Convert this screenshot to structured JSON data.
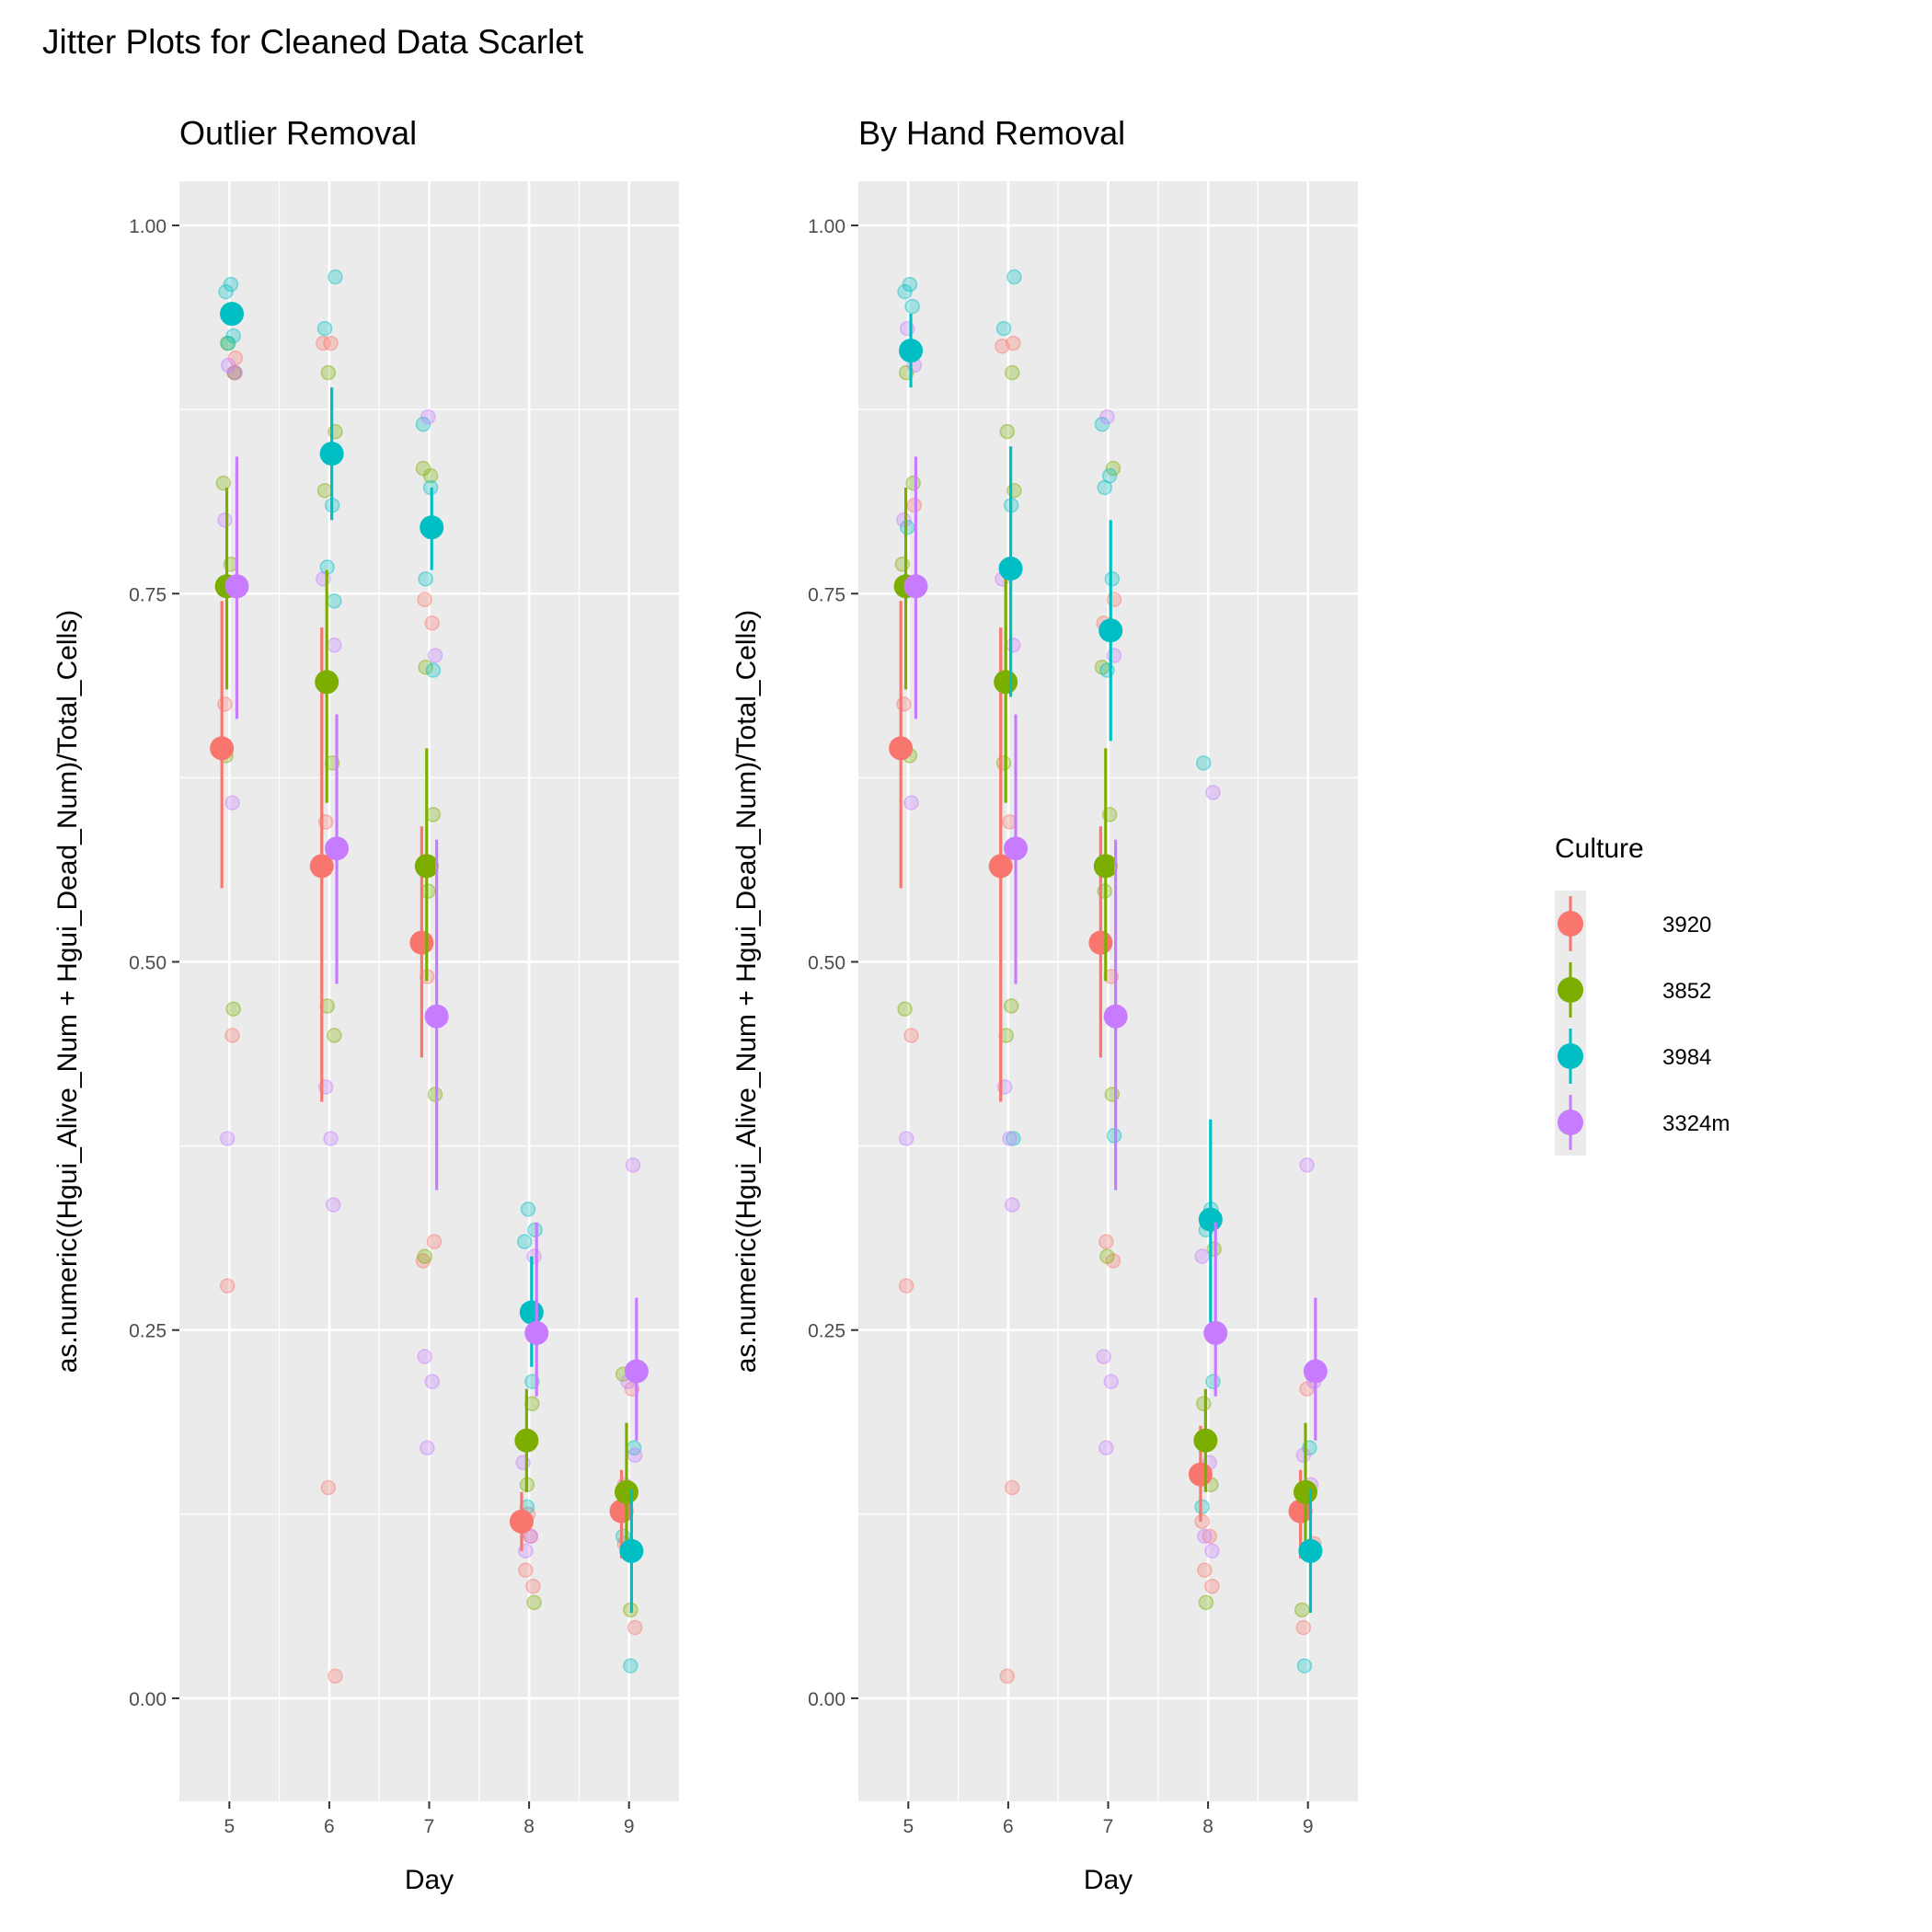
{
  "title": "Jitter Plots for Cleaned Data Scarlet",
  "legend": {
    "title": "Culture",
    "items": [
      {
        "label": "3920",
        "color": "#F8766D"
      },
      {
        "label": "3852",
        "color": "#7CAE00"
      },
      {
        "label": "3984",
        "color": "#00BFC4"
      },
      {
        "label": "3324m",
        "color": "#C77CFF"
      }
    ]
  },
  "chart_data": [
    {
      "type": "scatter",
      "title": "Outlier Removal",
      "xlabel": "Day",
      "ylabel": "as.numeric((Hgui_Alive_Num + Hgui_Dead_Num)/Total_Cells)",
      "categories": [
        "5",
        "6",
        "7",
        "8",
        "9"
      ],
      "ylim": [
        -0.07,
        1.03
      ],
      "yticks": [
        "0.00",
        "0.25",
        "0.50",
        "0.75",
        "1.00"
      ],
      "grid": true,
      "series": [
        {
          "name": "3920",
          "color": "#F8766D",
          "means": [
            0.645,
            0.565,
            0.513,
            0.12,
            0.127
          ],
          "err_low": [
            0.55,
            0.405,
            0.435,
            0.1,
            0.095
          ],
          "err_high": [
            0.745,
            0.727,
            0.592,
            0.14,
            0.155
          ],
          "points": [
            [
              5,
              0.91
            ],
            [
              5,
              0.675
            ],
            [
              5,
              0.45
            ],
            [
              5,
              0.28
            ],
            [
              5,
              0.9
            ],
            [
              6,
              0.92
            ],
            [
              6,
              0.92
            ],
            [
              6,
              0.595
            ],
            [
              6,
              0.575
            ],
            [
              6,
              0.143
            ],
            [
              6,
              0.015
            ],
            [
              7,
              0.746
            ],
            [
              7,
              0.73
            ],
            [
              7,
              0.49
            ],
            [
              7,
              0.31
            ],
            [
              7,
              0.297
            ],
            [
              8,
              0.11
            ],
            [
              8,
              0.087
            ],
            [
              8,
              0.076
            ],
            [
              8,
              0.125
            ],
            [
              9,
              0.048
            ],
            [
              9,
              0.105
            ],
            [
              9,
              0.21
            ]
          ]
        },
        {
          "name": "3852",
          "color": "#7CAE00",
          "means": [
            0.755,
            0.69,
            0.565,
            0.175,
            0.14
          ],
          "err_low": [
            0.685,
            0.608,
            0.487,
            0.14,
            0.098
          ],
          "err_high": [
            0.822,
            0.766,
            0.645,
            0.21,
            0.187
          ],
          "points": [
            [
              5,
              0.92
            ],
            [
              5,
              0.9
            ],
            [
              5,
              0.825
            ],
            [
              5,
              0.77
            ],
            [
              5,
              0.64
            ],
            [
              5,
              0.468
            ],
            [
              6,
              0.9
            ],
            [
              6,
              0.86
            ],
            [
              6,
              0.82
            ],
            [
              6,
              0.635
            ],
            [
              6,
              0.47
            ],
            [
              6,
              0.45
            ],
            [
              7,
              0.835
            ],
            [
              7,
              0.83
            ],
            [
              7,
              0.7
            ],
            [
              7,
              0.6
            ],
            [
              7,
              0.548
            ],
            [
              7,
              0.41
            ],
            [
              7,
              0.3
            ],
            [
              8,
              0.2
            ],
            [
              8,
              0.145
            ],
            [
              8,
              0.065
            ],
            [
              9,
              0.22
            ],
            [
              9,
              0.06
            ]
          ]
        },
        {
          "name": "3984",
          "color": "#00BFC4",
          "means": [
            0.94,
            0.845,
            0.795,
            0.262,
            0.1
          ],
          "err_low": [
            0.94,
            0.8,
            0.766,
            0.225,
            0.058
          ],
          "err_high": [
            0.94,
            0.89,
            0.822,
            0.3,
            0.142
          ],
          "points": [
            [
              5,
              0.96
            ],
            [
              5,
              0.955
            ],
            [
              5,
              0.925
            ],
            [
              5,
              0.92
            ],
            [
              6,
              0.965
            ],
            [
              6,
              0.93
            ],
            [
              6,
              0.81
            ],
            [
              6,
              0.768
            ],
            [
              6,
              0.745
            ],
            [
              7,
              0.865
            ],
            [
              7,
              0.822
            ],
            [
              7,
              0.76
            ],
            [
              7,
              0.698
            ],
            [
              8,
              0.332
            ],
            [
              8,
              0.318
            ],
            [
              8,
              0.31
            ],
            [
              8,
              0.215
            ],
            [
              8,
              0.13
            ],
            [
              9,
              0.17
            ],
            [
              9,
              0.11
            ],
            [
              9,
              0.022
            ]
          ]
        },
        {
          "name": "3324m",
          "color": "#C77CFF",
          "means": [
            0.755,
            0.577,
            0.463,
            0.248,
            0.222
          ],
          "err_low": [
            0.665,
            0.485,
            0.345,
            0.205,
            0.175
          ],
          "err_high": [
            0.843,
            0.668,
            0.583,
            0.323,
            0.272
          ],
          "points": [
            [
              5,
              0.905
            ],
            [
              5,
              0.9
            ],
            [
              5,
              0.8
            ],
            [
              5,
              0.608
            ],
            [
              5,
              0.38
            ],
            [
              6,
              0.715
            ],
            [
              6,
              0.76
            ],
            [
              6,
              0.38
            ],
            [
              6,
              0.415
            ],
            [
              6,
              0.335
            ],
            [
              7,
              0.87
            ],
            [
              7,
              0.708
            ],
            [
              7,
              0.232
            ],
            [
              7,
              0.215
            ],
            [
              7,
              0.17
            ],
            [
              8,
              0.3
            ],
            [
              8,
              0.16
            ],
            [
              8,
              0.11
            ],
            [
              8,
              0.1
            ],
            [
              9,
              0.362
            ],
            [
              9,
              0.215
            ],
            [
              9,
              0.165
            ],
            [
              9,
              0.145
            ]
          ]
        }
      ]
    },
    {
      "type": "scatter",
      "title": "By Hand Removal",
      "xlabel": "Day",
      "ylabel": "as.numeric((Hgui_Alive_Num + Hgui_Dead_Num)/Total_Cells)",
      "categories": [
        "5",
        "6",
        "7",
        "8",
        "9"
      ],
      "ylim": [
        -0.07,
        1.03
      ],
      "yticks": [
        "0.00",
        "0.25",
        "0.50",
        "0.75",
        "1.00"
      ],
      "grid": true,
      "series": [
        {
          "name": "3920",
          "color": "#F8766D",
          "means": [
            0.645,
            0.565,
            0.513,
            0.152,
            0.127
          ],
          "err_low": [
            0.55,
            0.405,
            0.435,
            0.12,
            0.095
          ],
          "err_high": [
            0.745,
            0.727,
            0.592,
            0.185,
            0.155
          ],
          "points": [
            [
              5,
              0.81
            ],
            [
              5,
              0.675
            ],
            [
              5,
              0.45
            ],
            [
              5,
              0.28
            ],
            [
              6,
              0.92
            ],
            [
              6,
              0.918
            ],
            [
              6,
              0.595
            ],
            [
              6,
              0.565
            ],
            [
              6,
              0.143
            ],
            [
              6,
              0.015
            ],
            [
              7,
              0.746
            ],
            [
              7,
              0.73
            ],
            [
              7,
              0.49
            ],
            [
              7,
              0.31
            ],
            [
              7,
              0.297
            ],
            [
              8,
              0.12
            ],
            [
              8,
              0.11
            ],
            [
              8,
              0.087
            ],
            [
              8,
              0.076
            ],
            [
              9,
              0.21
            ],
            [
              9,
              0.105
            ],
            [
              9,
              0.048
            ]
          ]
        },
        {
          "name": "3852",
          "color": "#7CAE00",
          "means": [
            0.755,
            0.69,
            0.565,
            0.175,
            0.14
          ],
          "err_low": [
            0.685,
            0.608,
            0.487,
            0.14,
            0.098
          ],
          "err_high": [
            0.822,
            0.766,
            0.645,
            0.21,
            0.187
          ],
          "points": [
            [
              5,
              0.9
            ],
            [
              5,
              0.825
            ],
            [
              5,
              0.77
            ],
            [
              5,
              0.64
            ],
            [
              5,
              0.468
            ],
            [
              6,
              0.9
            ],
            [
              6,
              0.86
            ],
            [
              6,
              0.82
            ],
            [
              6,
              0.635
            ],
            [
              6,
              0.47
            ],
            [
              6,
              0.45
            ],
            [
              7,
              0.835
            ],
            [
              7,
              0.7
            ],
            [
              7,
              0.6
            ],
            [
              7,
              0.548
            ],
            [
              7,
              0.41
            ],
            [
              7,
              0.3
            ],
            [
              8,
              0.305
            ],
            [
              8,
              0.2
            ],
            [
              8,
              0.145
            ],
            [
              8,
              0.065
            ],
            [
              9,
              0.22
            ],
            [
              9,
              0.06
            ]
          ]
        },
        {
          "name": "3984",
          "color": "#00BFC4",
          "means": [
            0.915,
            0.767,
            0.725,
            0.325,
            0.1
          ],
          "err_low": [
            0.89,
            0.68,
            0.65,
            0.255,
            0.058
          ],
          "err_high": [
            0.94,
            0.85,
            0.8,
            0.393,
            0.142
          ],
          "points": [
            [
              5,
              0.96
            ],
            [
              5,
              0.955
            ],
            [
              5,
              0.945
            ],
            [
              5,
              0.795
            ],
            [
              6,
              0.965
            ],
            [
              6,
              0.93
            ],
            [
              6,
              0.81
            ],
            [
              6,
              0.768
            ],
            [
              6,
              0.38
            ],
            [
              7,
              0.865
            ],
            [
              7,
              0.83
            ],
            [
              7,
              0.822
            ],
            [
              7,
              0.76
            ],
            [
              7,
              0.698
            ],
            [
              7,
              0.382
            ],
            [
              8,
              0.635
            ],
            [
              8,
              0.332
            ],
            [
              8,
              0.318
            ],
            [
              8,
              0.215
            ],
            [
              8,
              0.13
            ],
            [
              9,
              0.17
            ],
            [
              9,
              0.022
            ]
          ]
        },
        {
          "name": "3324m",
          "color": "#C77CFF",
          "means": [
            0.755,
            0.577,
            0.463,
            0.248,
            0.222
          ],
          "err_low": [
            0.665,
            0.485,
            0.345,
            0.205,
            0.175
          ],
          "err_high": [
            0.843,
            0.668,
            0.583,
            0.323,
            0.272
          ],
          "points": [
            [
              5,
              0.93
            ],
            [
              5,
              0.905
            ],
            [
              5,
              0.8
            ],
            [
              5,
              0.608
            ],
            [
              5,
              0.38
            ],
            [
              6,
              0.715
            ],
            [
              6,
              0.76
            ],
            [
              6,
              0.38
            ],
            [
              6,
              0.415
            ],
            [
              6,
              0.335
            ],
            [
              7,
              0.87
            ],
            [
              7,
              0.708
            ],
            [
              7,
              0.232
            ],
            [
              7,
              0.215
            ],
            [
              7,
              0.17
            ],
            [
              8,
              0.615
            ],
            [
              8,
              0.3
            ],
            [
              8,
              0.16
            ],
            [
              8,
              0.11
            ],
            [
              8,
              0.1
            ],
            [
              9,
              0.362
            ],
            [
              9,
              0.215
            ],
            [
              9,
              0.165
            ],
            [
              9,
              0.145
            ]
          ]
        }
      ]
    }
  ]
}
